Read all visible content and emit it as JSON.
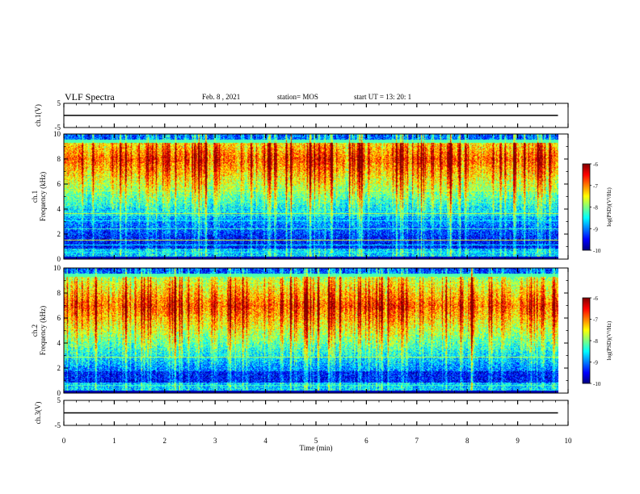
{
  "header": {
    "title": "VLF Spectra",
    "date": "Feb. 8 , 2021",
    "station": "station= MOS",
    "start": "start UT = 13: 20: 1"
  },
  "colors": {
    "jet": [
      "#00007f",
      "#0000ff",
      "#007fff",
      "#00ffff",
      "#7fff7f",
      "#ffff00",
      "#ff7f00",
      "#ff0000",
      "#7f0000"
    ]
  },
  "chart_data": [
    {
      "type": "line",
      "ylabel": "ch.1(V)",
      "ylim": [
        -5,
        5
      ],
      "y_ticks": [
        "5",
        "-5"
      ],
      "series": [
        {
          "x": [
            0,
            9.8
          ],
          "y": [
            0,
            0
          ]
        }
      ]
    },
    {
      "type": "heatmap",
      "ylabel": "ch.1\nFrequency (kHz)",
      "ylabel_lines": [
        "ch.1",
        "Frequency (kHz)"
      ],
      "xlim": [
        0,
        10
      ],
      "ylim": [
        0,
        10
      ],
      "y_ticks": [
        "0",
        "2",
        "4",
        "6",
        "8",
        "10"
      ],
      "data_xmax": 9.8,
      "intensity_peak_khz": 8,
      "colorbar": {
        "label": "log(PSD)(V²/Hz)",
        "ticks": [
          "-6",
          "-7",
          "-8",
          "-9",
          "-10"
        ],
        "range": [
          -10,
          -6
        ]
      }
    },
    {
      "type": "heatmap",
      "ylabel": "ch.2\nFrequency (kHz)",
      "ylabel_lines": [
        "ch.2",
        "Frequency (kHz)"
      ],
      "xlim": [
        0,
        10
      ],
      "ylim": [
        0,
        10
      ],
      "y_ticks": [
        "0",
        "2",
        "4",
        "6",
        "8",
        "10"
      ],
      "data_xmax": 9.8,
      "intensity_peak_khz": 7,
      "colorbar": {
        "label": "log(PSD)(V²/Hz)",
        "ticks": [
          "-6",
          "-7",
          "-8",
          "-9",
          "-10"
        ],
        "range": [
          -10,
          -6
        ]
      }
    },
    {
      "type": "line",
      "ylabel": "ch.3(V)",
      "ylim": [
        -5,
        5
      ],
      "y_ticks": [
        "5",
        "-5"
      ],
      "series": [
        {
          "x": [
            0,
            9.8
          ],
          "y": [
            0,
            0
          ]
        }
      ]
    }
  ],
  "x_axis": {
    "xlabel": "Time (min)",
    "xlim": [
      0,
      10
    ],
    "ticks": [
      "0",
      "1",
      "2",
      "3",
      "4",
      "5",
      "6",
      "7",
      "8",
      "9",
      "10"
    ]
  }
}
